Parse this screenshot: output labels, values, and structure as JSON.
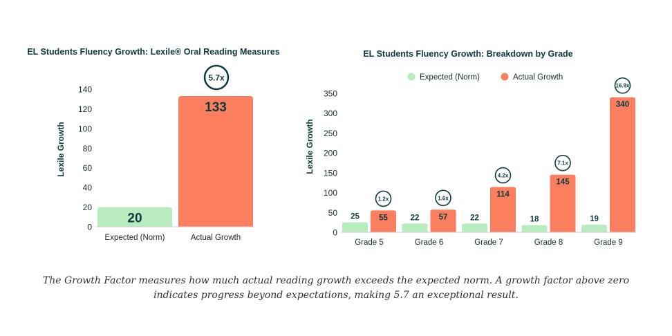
{
  "colors": {
    "expected": "#b7ecbf",
    "actual": "#fb7e5e",
    "title": "#0f3a3f",
    "axis_text": "#1a2a2a",
    "factor_ring": "#0f3a3f"
  },
  "chart_data": [
    {
      "type": "bar",
      "title": "EL Students Fluency Growth: Lexile® Oral Reading Measures",
      "xlabel": "",
      "ylabel": "Lexile Growth",
      "ylim": [
        0,
        140
      ],
      "yticks": [
        0,
        20,
        40,
        60,
        80,
        100,
        120,
        140
      ],
      "categories": [
        "Expected (Norm)",
        "Actual Growth"
      ],
      "values": [
        20,
        133
      ],
      "value_labels": [
        "20",
        "133"
      ],
      "growth_factor": "5.7x",
      "grid": false
    },
    {
      "type": "bar",
      "title": "EL Students Fluency Growth: Breakdown by Grade",
      "xlabel": "",
      "ylabel": "Lexile Growth",
      "ylim": [
        0,
        350
      ],
      "yticks": [
        0,
        50,
        100,
        150,
        200,
        250,
        300,
        350
      ],
      "categories": [
        "Grade 5",
        "Grade 6",
        "Grade 7",
        "Grade 8",
        "Grade 9"
      ],
      "series": [
        {
          "name": "Expected (Norm)",
          "values": [
            25,
            22,
            22,
            18,
            19
          ]
        },
        {
          "name": "Actual Growth",
          "values": [
            55,
            57,
            114,
            145,
            340
          ]
        }
      ],
      "growth_factors": [
        "1.2x",
        "1.6x",
        "4.2x",
        "7.1x",
        "16.9x"
      ],
      "legend": "top-center",
      "grid": false
    }
  ],
  "caption": "The Growth Factor measures how much actual reading growth exceeds the expected norm. A growth factor above zero indicates progress beyond expectations, making 5.7 an exceptional result."
}
